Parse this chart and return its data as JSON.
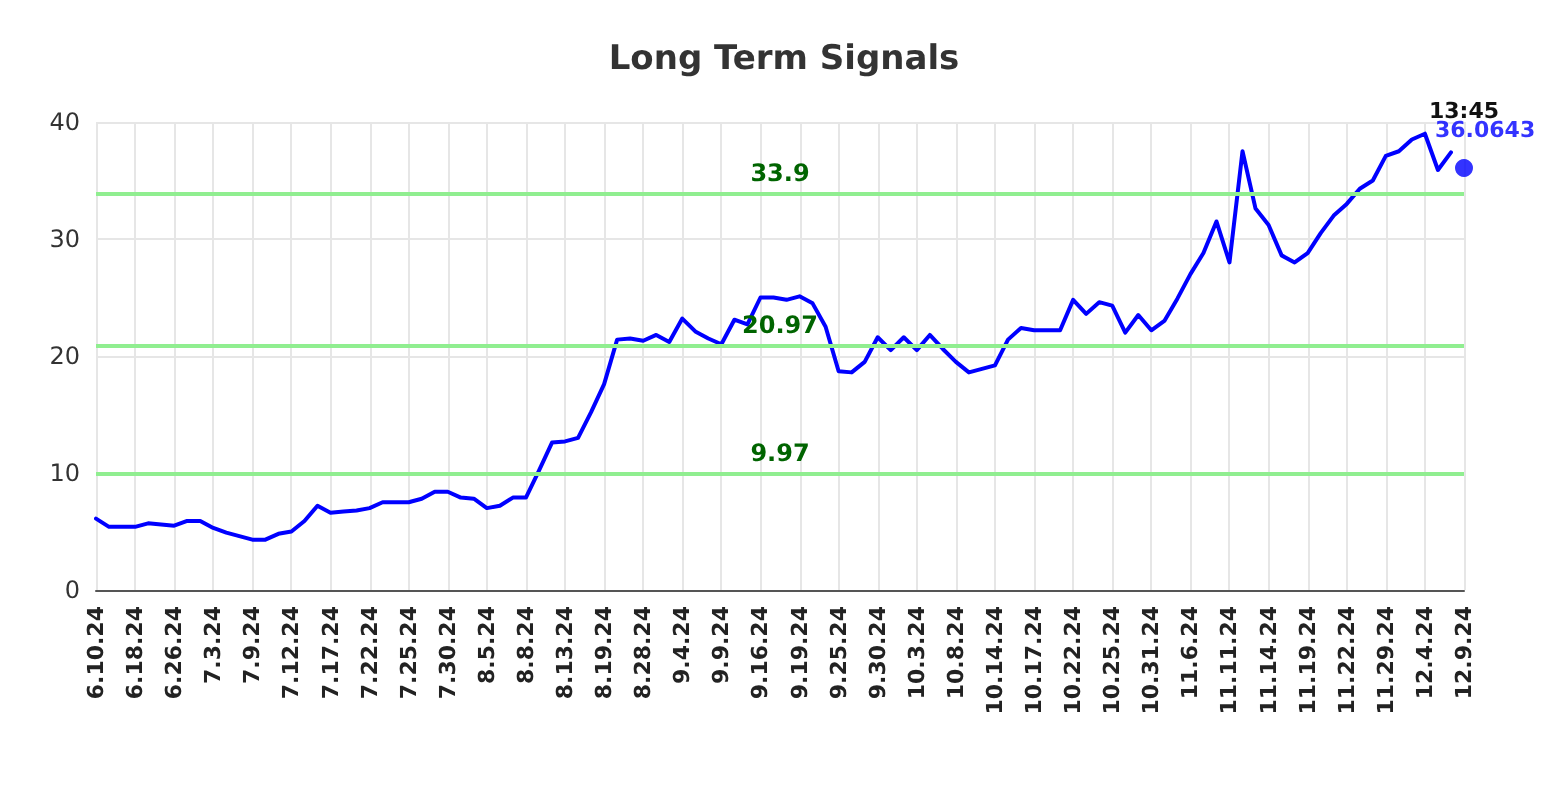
{
  "chart_data": {
    "type": "line",
    "title": "Long Term Signals",
    "categories": [
      "6.10.24",
      null,
      null,
      "6.18.24",
      null,
      null,
      "6.26.24",
      null,
      null,
      "7.3.24",
      null,
      null,
      "7.9.24",
      null,
      null,
      "7.12.24",
      null,
      null,
      "7.17.24",
      null,
      null,
      "7.22.24",
      null,
      null,
      "7.25.24",
      null,
      null,
      "7.30.24",
      null,
      null,
      "8.5.24",
      null,
      null,
      "8.8.24",
      null,
      null,
      "8.13.24",
      null,
      null,
      "8.19.24",
      null,
      null,
      "8.28.24",
      null,
      null,
      "9.4.24",
      null,
      null,
      "9.9.24",
      null,
      null,
      "9.16.24",
      null,
      null,
      "9.19.24",
      null,
      null,
      "9.25.24",
      null,
      null,
      "9.30.24",
      null,
      null,
      "10.3.24",
      null,
      null,
      "10.8.24",
      null,
      null,
      "10.14.24",
      null,
      null,
      "10.17.24",
      null,
      null,
      "10.22.24",
      null,
      null,
      "10.25.24",
      null,
      null,
      "10.31.24",
      null,
      null,
      "11.6.24",
      null,
      null,
      "11.11.24",
      null,
      null,
      "11.14.24",
      null,
      null,
      "11.19.24",
      null,
      null,
      "11.22.24",
      null,
      null,
      "11.29.24",
      null,
      null,
      "12.4.24",
      null,
      null,
      "12.9.24"
    ],
    "series": [
      {
        "color": "#0000ff",
        "marker": "none",
        "values": [
          6.1,
          5.4,
          5.4,
          5.4,
          5.7,
          5.6,
          5.5,
          5.9,
          5.9,
          5.3,
          4.9,
          4.6,
          4.3,
          4.3,
          4.8,
          5.0,
          5.9,
          7.2,
          6.6,
          6.7,
          6.8,
          7.0,
          7.5,
          7.5,
          7.5,
          7.8,
          8.4,
          8.4,
          7.9,
          7.8,
          7.0,
          7.2,
          7.9,
          7.9,
          10.2,
          12.6,
          12.7,
          13.0,
          15.2,
          17.6,
          21.4,
          21.5,
          21.3,
          21.8,
          21.2,
          23.2,
          22.1,
          21.5,
          21.0,
          23.1,
          22.7,
          25.0,
          25.0,
          24.8,
          25.1,
          24.5,
          22.5,
          18.7,
          18.6,
          19.5,
          21.6,
          20.5,
          21.6,
          20.5,
          21.8,
          20.6,
          19.5,
          18.6,
          18.9,
          19.2,
          21.4,
          22.4,
          22.2,
          22.2,
          22.2,
          24.8,
          23.6,
          24.6,
          24.3,
          22.0,
          23.5,
          22.2,
          23.0,
          24.9,
          27.0,
          28.8,
          31.5,
          28.0,
          37.5,
          32.6,
          31.2,
          28.6,
          28.0,
          28.8,
          30.5,
          32.0,
          33.0,
          34.3,
          35.0,
          37.1,
          37.5,
          38.5,
          39.0,
          35.9,
          37.4,
          null
        ]
      },
      {
        "type": "scatter",
        "marker": "circle",
        "color": "#0000ff",
        "x": [
          "12.9.24"
        ],
        "values": [
          36.0643
        ],
        "value_labels": [
          "36.0643"
        ]
      }
    ],
    "ylim": [
      0,
      40
    ],
    "yticks": [
      0,
      10,
      20,
      30,
      40
    ],
    "grid": true,
    "ref_lines": [
      {
        "axis": "y",
        "value": 33.9,
        "label": "33.9",
        "color": "#90ee90"
      },
      {
        "axis": "y",
        "value": 20.97,
        "label": "20.97",
        "color": "#90ee90"
      },
      {
        "axis": "y",
        "value": 9.97,
        "label": "9.97",
        "color": "#90ee90"
      }
    ],
    "annotations": [
      {
        "text": "13:45",
        "x": "12.9.24",
        "y": 36.0643
      }
    ]
  }
}
